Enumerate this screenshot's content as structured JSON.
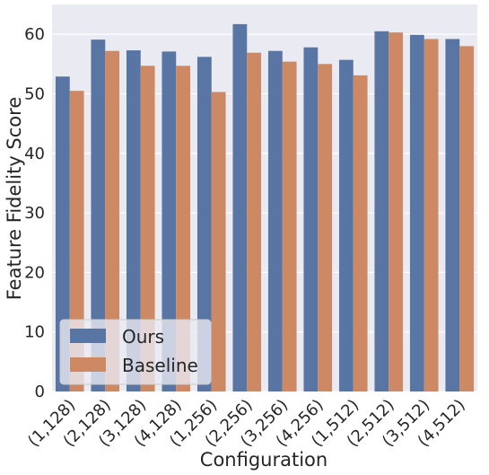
{
  "chart_data": {
    "type": "bar",
    "title": "",
    "xlabel": "Configuration",
    "ylabel": "Feature Fidelity Score",
    "ylim": [
      0,
      65
    ],
    "yticks": [
      0,
      10,
      20,
      30,
      40,
      50,
      60
    ],
    "grid": true,
    "legend_position": "lower-left",
    "categories": [
      "(1,128)",
      "(2,128)",
      "(3,128)",
      "(4,128)",
      "(1,256)",
      "(2,256)",
      "(3,256)",
      "(4,256)",
      "(1,512)",
      "(2,512)",
      "(3,512)",
      "(4,512)"
    ],
    "series": [
      {
        "name": "Ours",
        "color": "#5975a4",
        "values": [
          52.9,
          59.1,
          57.3,
          57.1,
          56.2,
          61.7,
          57.2,
          57.8,
          55.7,
          60.5,
          59.9,
          59.2
        ]
      },
      {
        "name": "Baseline",
        "color": "#cc8963",
        "values": [
          50.5,
          57.2,
          54.7,
          54.7,
          50.3,
          56.9,
          55.4,
          55.0,
          53.1,
          60.3,
          59.2,
          58.0
        ]
      }
    ]
  }
}
